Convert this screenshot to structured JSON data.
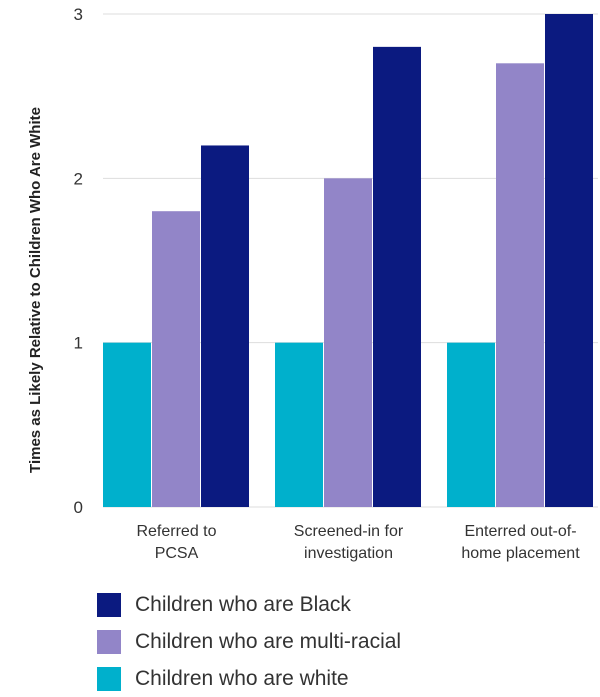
{
  "chart_data": {
    "type": "bar",
    "ylabel": "Times as Likely Relative to Children Who Are White",
    "ylim": [
      0,
      3
    ],
    "yticks": [
      0,
      1,
      2,
      3
    ],
    "categories": [
      [
        "Referred to",
        "PCSA"
      ],
      [
        "Screened-in for",
        "investigation"
      ],
      [
        "Enterred out-of-",
        "home placement"
      ]
    ],
    "series": [
      {
        "name": "Children who are white",
        "color": "#00b0cc",
        "values": [
          1,
          1,
          1
        ]
      },
      {
        "name": "Children who are multi-racial",
        "color": "#9285c8",
        "values": [
          1.8,
          2.0,
          2.7
        ]
      },
      {
        "name": "Children who are Black",
        "color": "#0b1a80",
        "values": [
          2.2,
          2.8,
          3.0
        ]
      }
    ],
    "legend_order": [
      2,
      1,
      0
    ],
    "legend_position": "bottom",
    "grid": true
  }
}
